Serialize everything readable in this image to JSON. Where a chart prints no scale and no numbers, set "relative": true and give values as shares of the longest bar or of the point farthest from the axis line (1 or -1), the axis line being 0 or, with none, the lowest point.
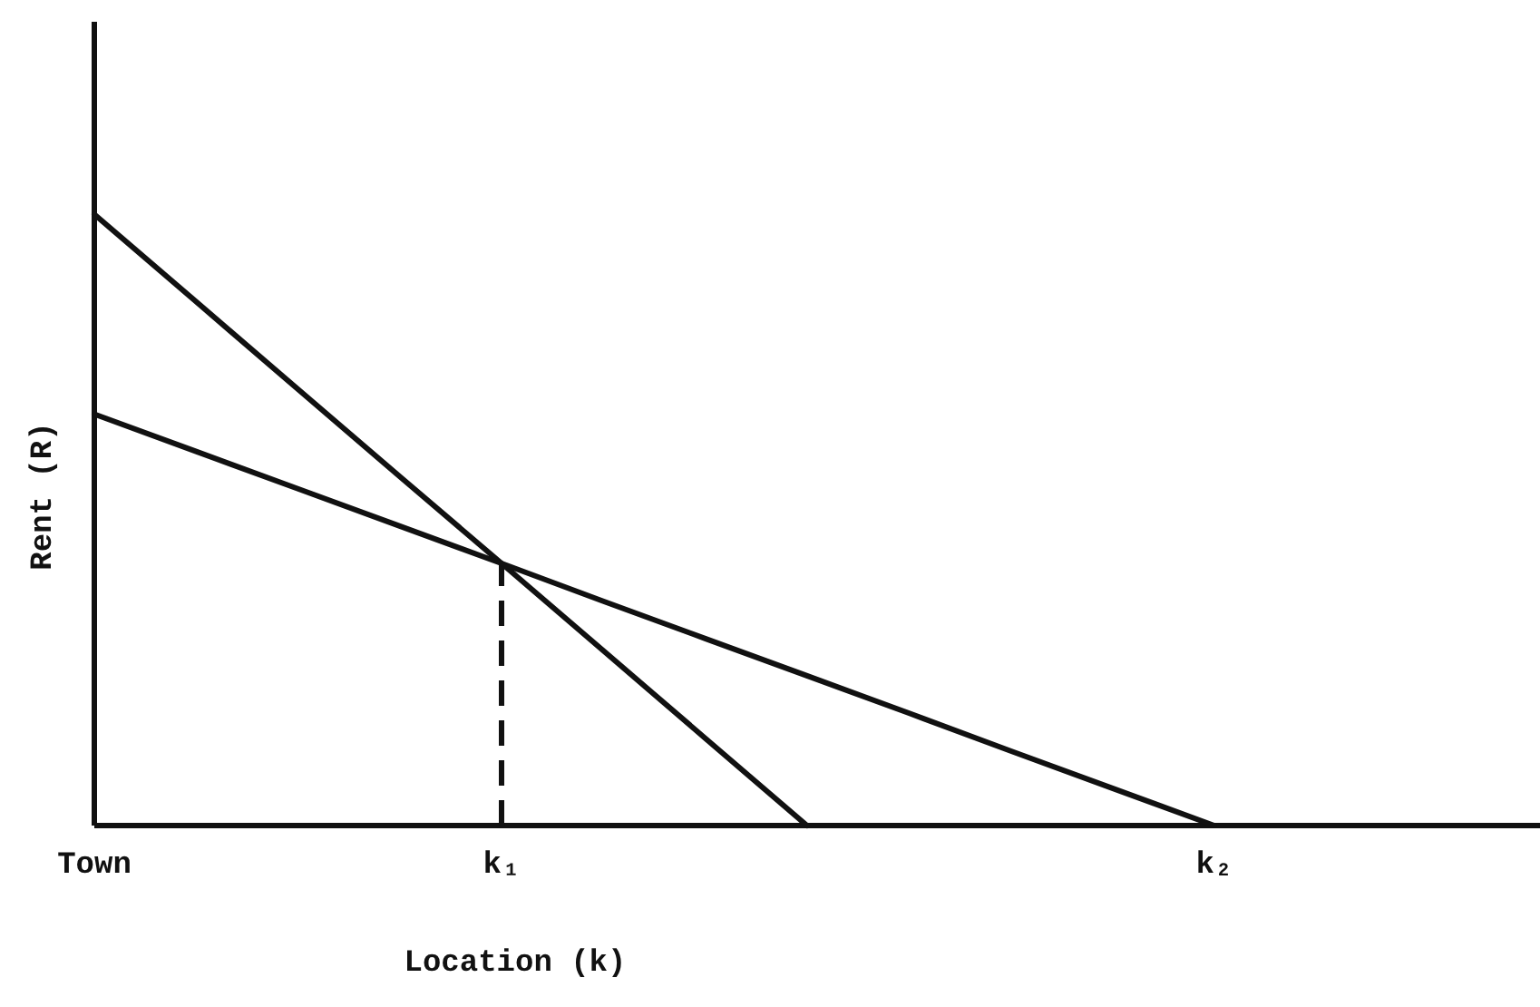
{
  "chart_data": {
    "type": "line",
    "relative": true,
    "xlabel": "Location (k)",
    "ylabel": "Rent (R)",
    "categories": [
      "Town",
      null,
      null,
      null,
      "k₁",
      null,
      null,
      null,
      null,
      null,
      null,
      "k₂",
      null,
      null,
      null
    ],
    "series": [
      {
        "color": "#111111",
        "values": [
          1,
          0.857,
          0.714,
          0.571,
          0.429,
          0.286,
          0.143,
          0,
          null,
          null,
          null,
          null,
          null,
          null,
          null
        ]
      },
      {
        "color": "#111111",
        "values": [
          0.673,
          0.612,
          0.551,
          0.49,
          0.429,
          0.367,
          0.306,
          0.245,
          0.184,
          0.122,
          0.061,
          0,
          null,
          null,
          null
        ]
      }
    ],
    "ref_lines": [
      {
        "axis": "x",
        "value": "k₁",
        "line_style": "dashed",
        "color": "#111111"
      }
    ],
    "grid": false,
    "marker": "none"
  }
}
